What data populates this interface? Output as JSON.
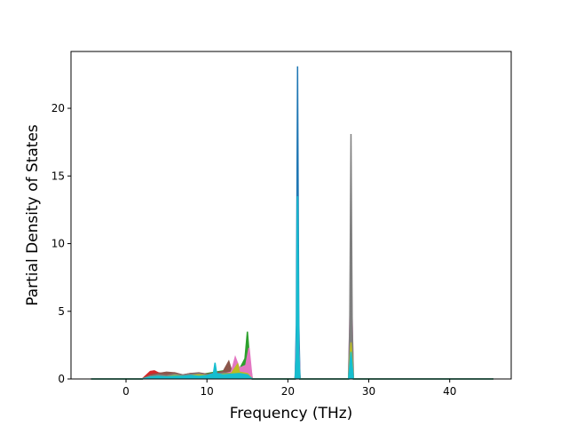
{
  "chart_data": {
    "type": "area",
    "title": "",
    "xlabel": "Frequency (THz)",
    "ylabel": "Partial Density of States",
    "xlim": [
      -6.8,
      47.6
    ],
    "ylim": [
      0,
      24.2
    ],
    "xticks": [
      0,
      10,
      20,
      30,
      40
    ],
    "yticks": [
      0,
      5,
      10,
      15,
      20
    ],
    "xtick_labels": [
      "0",
      "10",
      "20",
      "30",
      "40"
    ],
    "ytick_labels": [
      "0",
      "5",
      "10",
      "15",
      "20"
    ],
    "x_range_of_data": [
      -4.3,
      45.4
    ],
    "grid": false,
    "legend": "none",
    "series": [
      {
        "color": "#1f77b4",
        "points": [
          [
            -4.3,
            0
          ],
          [
            2,
            0
          ],
          [
            3,
            0.15
          ],
          [
            4,
            0.2
          ],
          [
            5,
            0.15
          ],
          [
            6,
            0.2
          ],
          [
            7,
            0.15
          ],
          [
            8,
            0.2
          ],
          [
            9,
            0.25
          ],
          [
            10,
            0.2
          ],
          [
            11,
            0.3
          ],
          [
            12,
            0.25
          ],
          [
            13,
            0.3
          ],
          [
            14,
            0.35
          ],
          [
            15,
            0.3
          ],
          [
            15.6,
            0
          ],
          [
            20.9,
            0
          ],
          [
            21.05,
            4
          ],
          [
            21.2,
            23.1
          ],
          [
            21.35,
            4
          ],
          [
            21.5,
            0
          ],
          [
            27.5,
            0
          ],
          [
            27.65,
            1.5
          ],
          [
            27.8,
            6.3
          ],
          [
            27.95,
            1.5
          ],
          [
            28.1,
            0
          ],
          [
            45.4,
            0
          ]
        ]
      },
      {
        "color": "#ff7f0e",
        "points": [
          [
            -4.3,
            0
          ],
          [
            2,
            0
          ],
          [
            3,
            0.2
          ],
          [
            4,
            0.3
          ],
          [
            5,
            0.2
          ],
          [
            6,
            0.3
          ],
          [
            7,
            0.2
          ],
          [
            8,
            0.3
          ],
          [
            9,
            0.4
          ],
          [
            10,
            0.3
          ],
          [
            11,
            0.4
          ],
          [
            12,
            0.5
          ],
          [
            13,
            0.6
          ],
          [
            14,
            0.8
          ],
          [
            15,
            0.4
          ],
          [
            15.6,
            0
          ],
          [
            20.9,
            0
          ],
          [
            21.2,
            1.5
          ],
          [
            21.5,
            0
          ],
          [
            27.5,
            0
          ],
          [
            27.8,
            1.2
          ],
          [
            28.1,
            0
          ],
          [
            45.4,
            0
          ]
        ]
      },
      {
        "color": "#2ca02c",
        "points": [
          [
            -4.3,
            0
          ],
          [
            2,
            0
          ],
          [
            3,
            0.3
          ],
          [
            4,
            0.25
          ],
          [
            5,
            0.3
          ],
          [
            6,
            0.4
          ],
          [
            7,
            0.3
          ],
          [
            8,
            0.35
          ],
          [
            9,
            0.3
          ],
          [
            10,
            0.4
          ],
          [
            11,
            0.5
          ],
          [
            12,
            0.6
          ],
          [
            13,
            0.5
          ],
          [
            14,
            0.7
          ],
          [
            14.7,
            1.5
          ],
          [
            15,
            3.5
          ],
          [
            15.3,
            1.2
          ],
          [
            15.6,
            0
          ],
          [
            20.9,
            0
          ],
          [
            21.2,
            2.5
          ],
          [
            21.5,
            0
          ],
          [
            27.5,
            0
          ],
          [
            27.8,
            1.0
          ],
          [
            28.1,
            0
          ],
          [
            45.4,
            0
          ]
        ]
      },
      {
        "color": "#d62728",
        "points": [
          [
            -4.3,
            0
          ],
          [
            2,
            0
          ],
          [
            3,
            0.55
          ],
          [
            3.5,
            0.6
          ],
          [
            4,
            0.45
          ],
          [
            5,
            0.35
          ],
          [
            6,
            0.45
          ],
          [
            7,
            0.3
          ],
          [
            8,
            0.4
          ],
          [
            9,
            0.35
          ],
          [
            10,
            0.3
          ],
          [
            11,
            0.4
          ],
          [
            12,
            0.5
          ],
          [
            13,
            0.45
          ],
          [
            14,
            0.5
          ],
          [
            15,
            0.3
          ],
          [
            15.6,
            0
          ],
          [
            20.9,
            0
          ],
          [
            21.2,
            2.0
          ],
          [
            21.5,
            0
          ],
          [
            27.5,
            0
          ],
          [
            27.8,
            1.5
          ],
          [
            28.1,
            0
          ],
          [
            45.4,
            0
          ]
        ]
      },
      {
        "color": "#9467bd",
        "points": [
          [
            -4.3,
            0
          ],
          [
            2,
            0
          ],
          [
            3,
            0.25
          ],
          [
            4,
            0.3
          ],
          [
            5,
            0.4
          ],
          [
            6,
            0.3
          ],
          [
            7,
            0.25
          ],
          [
            8,
            0.3
          ],
          [
            9,
            0.35
          ],
          [
            10,
            0.3
          ],
          [
            11,
            0.4
          ],
          [
            12,
            0.5
          ],
          [
            13,
            0.4
          ],
          [
            14,
            0.6
          ],
          [
            15,
            0.5
          ],
          [
            15.6,
            0
          ],
          [
            20.9,
            0
          ],
          [
            21.2,
            3.0
          ],
          [
            21.5,
            0
          ],
          [
            27.5,
            0
          ],
          [
            27.8,
            2.0
          ],
          [
            28.1,
            0
          ],
          [
            45.4,
            0
          ]
        ]
      },
      {
        "color": "#8c564b",
        "points": [
          [
            -4.3,
            0
          ],
          [
            2,
            0
          ],
          [
            3,
            0.3
          ],
          [
            4,
            0.4
          ],
          [
            5,
            0.5
          ],
          [
            6,
            0.45
          ],
          [
            7,
            0.3
          ],
          [
            8,
            0.4
          ],
          [
            9,
            0.45
          ],
          [
            10,
            0.35
          ],
          [
            11,
            0.45
          ],
          [
            12,
            0.55
          ],
          [
            12.7,
            1.3
          ],
          [
            13,
            0.7
          ],
          [
            14,
            0.6
          ],
          [
            15,
            0.4
          ],
          [
            15.6,
            0
          ],
          [
            20.9,
            0
          ],
          [
            21.2,
            3.5
          ],
          [
            21.5,
            0
          ],
          [
            27.5,
            0
          ],
          [
            27.8,
            2.5
          ],
          [
            28.1,
            0
          ],
          [
            45.4,
            0
          ]
        ]
      },
      {
        "color": "#e377c2",
        "points": [
          [
            -4.3,
            0
          ],
          [
            2,
            0
          ],
          [
            3,
            0.2
          ],
          [
            4,
            0.25
          ],
          [
            5,
            0.2
          ],
          [
            6,
            0.3
          ],
          [
            7,
            0.25
          ],
          [
            8,
            0.3
          ],
          [
            9,
            0.35
          ],
          [
            10,
            0.3
          ],
          [
            11,
            0.35
          ],
          [
            12,
            0.4
          ],
          [
            13,
            0.5
          ],
          [
            13.5,
            1.6
          ],
          [
            14,
            0.8
          ],
          [
            14.8,
            1.0
          ],
          [
            15.2,
            2.3
          ],
          [
            15.5,
            0.5
          ],
          [
            15.6,
            0
          ],
          [
            20.9,
            0
          ],
          [
            21.2,
            5.0
          ],
          [
            21.5,
            0
          ],
          [
            27.5,
            0
          ],
          [
            27.8,
            8.5
          ],
          [
            28.1,
            0
          ],
          [
            45.4,
            0
          ]
        ]
      },
      {
        "color": "#7f7f7f",
        "points": [
          [
            -4.3,
            0
          ],
          [
            2,
            0
          ],
          [
            3,
            0.2
          ],
          [
            4,
            0.3
          ],
          [
            5,
            0.25
          ],
          [
            6,
            0.35
          ],
          [
            7,
            0.3
          ],
          [
            8,
            0.35
          ],
          [
            9,
            0.4
          ],
          [
            10,
            0.3
          ],
          [
            11,
            0.35
          ],
          [
            12,
            0.45
          ],
          [
            13,
            0.4
          ],
          [
            14,
            0.5
          ],
          [
            15,
            0.35
          ],
          [
            15.6,
            0
          ],
          [
            20.9,
            0
          ],
          [
            21.2,
            3.0
          ],
          [
            21.5,
            0
          ],
          [
            27.5,
            0
          ],
          [
            27.65,
            4
          ],
          [
            27.8,
            18.1
          ],
          [
            27.95,
            4
          ],
          [
            28.1,
            0
          ],
          [
            45.4,
            0
          ]
        ]
      },
      {
        "color": "#bcbd22",
        "points": [
          [
            -4.3,
            0
          ],
          [
            2,
            0
          ],
          [
            3,
            0.15
          ],
          [
            4,
            0.2
          ],
          [
            5,
            0.15
          ],
          [
            6,
            0.25
          ],
          [
            7,
            0.2
          ],
          [
            8,
            0.25
          ],
          [
            9,
            0.3
          ],
          [
            10,
            0.25
          ],
          [
            11,
            0.3
          ],
          [
            12,
            0.35
          ],
          [
            13,
            0.4
          ],
          [
            13.8,
            1.1
          ],
          [
            14,
            0.5
          ],
          [
            15,
            0.4
          ],
          [
            15.6,
            0
          ],
          [
            20.9,
            0
          ],
          [
            21.2,
            2.0
          ],
          [
            21.5,
            0
          ],
          [
            27.5,
            0
          ],
          [
            27.8,
            2.7
          ],
          [
            28.1,
            0
          ],
          [
            45.4,
            0
          ]
        ]
      },
      {
        "color": "#17becf",
        "points": [
          [
            -4.3,
            0
          ],
          [
            2,
            0
          ],
          [
            3,
            0.15
          ],
          [
            4,
            0.2
          ],
          [
            5,
            0.15
          ],
          [
            6,
            0.2
          ],
          [
            7,
            0.2
          ],
          [
            8,
            0.25
          ],
          [
            9,
            0.2
          ],
          [
            10,
            0.25
          ],
          [
            10.8,
            0.4
          ],
          [
            11,
            1.2
          ],
          [
            11.2,
            0.4
          ],
          [
            12,
            0.3
          ],
          [
            13,
            0.35
          ],
          [
            14,
            0.4
          ],
          [
            15,
            0.3
          ],
          [
            15.6,
            0
          ],
          [
            20.9,
            0
          ],
          [
            21.05,
            2
          ],
          [
            21.2,
            13.5
          ],
          [
            21.35,
            2
          ],
          [
            21.5,
            0
          ],
          [
            27.5,
            0
          ],
          [
            27.8,
            2.0
          ],
          [
            28.1,
            0
          ],
          [
            45.4,
            0
          ]
        ]
      }
    ]
  }
}
